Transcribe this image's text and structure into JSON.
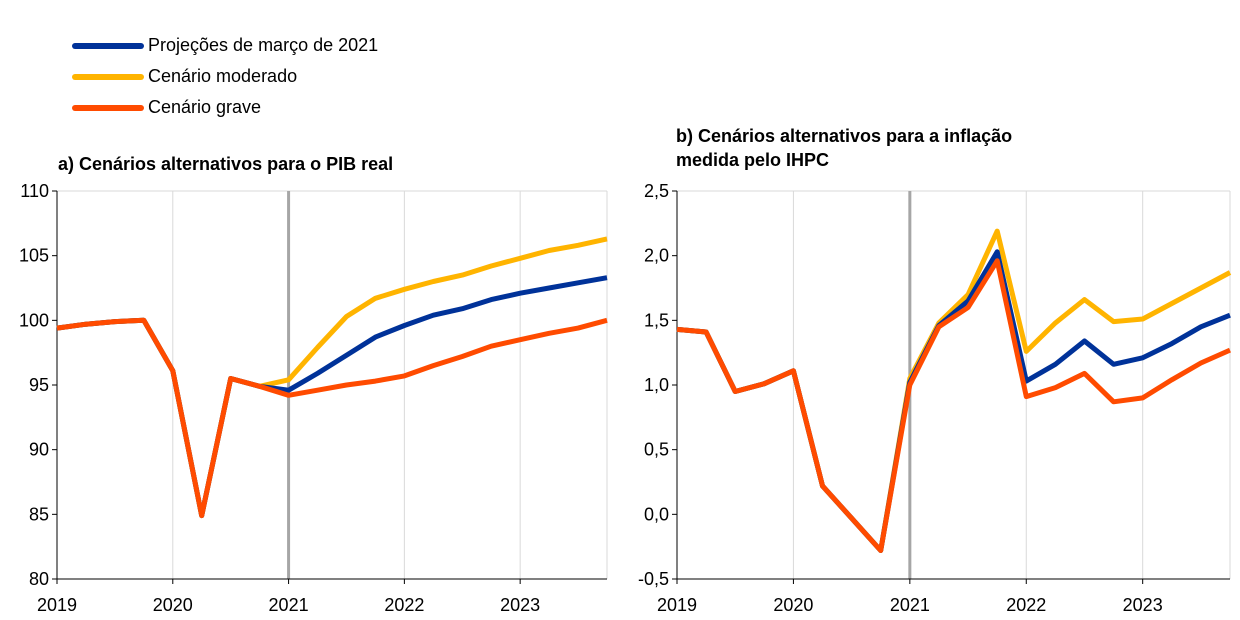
{
  "legend": [
    {
      "label": "Projeções de março de 2021",
      "color": "#003299"
    },
    {
      "label": "Cenário moderado",
      "color": "#FFB400"
    },
    {
      "label": "Cenário grave",
      "color": "#FF4B00"
    }
  ],
  "colors": {
    "grid": "#d9d9d9",
    "marker": "#a6a6a6",
    "axis": "#000000"
  },
  "chart_data": [
    {
      "type": "line",
      "title": "a) Cenários alternativos para o PIB real",
      "xlabel": "",
      "ylabel": "",
      "x_tick_labels": [
        "2019",
        "2020",
        "2021",
        "2022",
        "2023"
      ],
      "x_range": [
        2019,
        2023.75
      ],
      "ylim": [
        80,
        110
      ],
      "y_ticks": [
        80,
        85,
        90,
        95,
        100,
        105,
        110
      ],
      "y_tick_labels": [
        "80",
        "85",
        "90",
        "95",
        "100",
        "105",
        "110"
      ],
      "grid": "vertical",
      "vertical_marker": 2021,
      "series": [
        {
          "name": "Cenário moderado",
          "color": "#FFB400",
          "x": [
            2019,
            2019.25,
            2019.5,
            2019.75,
            2020,
            2020.25,
            2020.5,
            2020.75,
            2021,
            2021.25,
            2021.5,
            2021.75,
            2022,
            2022.25,
            2022.5,
            2022.75,
            2023,
            2023.25,
            2023.5,
            2023.75
          ],
          "y": [
            99.4,
            99.7,
            99.9,
            100.0,
            96.1,
            84.9,
            95.5,
            94.9,
            95.4,
            97.9,
            100.3,
            101.7,
            102.4,
            103.0,
            103.5,
            104.2,
            104.8,
            105.4,
            105.8,
            106.3
          ]
        },
        {
          "name": "Projeções de março de 2021",
          "color": "#003299",
          "x": [
            2019,
            2019.25,
            2019.5,
            2019.75,
            2020,
            2020.25,
            2020.5,
            2020.75,
            2021,
            2021.25,
            2021.5,
            2021.75,
            2022,
            2022.25,
            2022.5,
            2022.75,
            2023,
            2023.25,
            2023.5,
            2023.75
          ],
          "y": [
            99.4,
            99.7,
            99.9,
            100.0,
            96.1,
            84.9,
            95.5,
            94.9,
            94.6,
            95.9,
            97.3,
            98.7,
            99.6,
            100.4,
            100.9,
            101.6,
            102.1,
            102.5,
            102.9,
            103.3
          ]
        },
        {
          "name": "Cenário grave",
          "color": "#FF4B00",
          "x": [
            2019,
            2019.25,
            2019.5,
            2019.75,
            2020,
            2020.25,
            2020.5,
            2020.75,
            2021,
            2021.25,
            2021.5,
            2021.75,
            2022,
            2022.25,
            2022.5,
            2022.75,
            2023,
            2023.25,
            2023.5,
            2023.75
          ],
          "y": [
            99.4,
            99.7,
            99.9,
            100.0,
            96.1,
            84.9,
            95.5,
            94.9,
            94.2,
            94.6,
            95.0,
            95.3,
            95.7,
            96.5,
            97.2,
            98.0,
            98.5,
            99.0,
            99.4,
            100.0
          ]
        }
      ]
    },
    {
      "type": "line",
      "title": "b) Cenários alternativos para a inflação medida pelo IHPC",
      "title_lines": [
        "b) Cenários alternativos para a inflação",
        "medida pelo IHPC"
      ],
      "xlabel": "",
      "ylabel": "",
      "x_tick_labels": [
        "2019",
        "2020",
        "2021",
        "2022",
        "2023"
      ],
      "x_range": [
        2019,
        2023.75
      ],
      "ylim": [
        -0.5,
        2.5
      ],
      "y_ticks": [
        -0.5,
        0.0,
        0.5,
        1.0,
        1.5,
        2.0,
        2.5
      ],
      "y_tick_labels": [
        "-0,5",
        "0,0",
        "0,5",
        "1,0",
        "1,5",
        "2,0",
        "2,5"
      ],
      "grid": "vertical",
      "vertical_marker": 2021,
      "series": [
        {
          "name": "Cenário moderado",
          "color": "#FFB400",
          "x": [
            2019,
            2019.25,
            2019.5,
            2019.75,
            2020,
            2020.25,
            2020.5,
            2020.75,
            2021,
            2021.25,
            2021.5,
            2021.75,
            2022,
            2022.25,
            2022.5,
            2022.75,
            2023,
            2023.25,
            2023.5,
            2023.75
          ],
          "y": [
            1.43,
            1.41,
            0.95,
            1.01,
            1.11,
            0.22,
            -0.03,
            -0.28,
            1.05,
            1.48,
            1.7,
            2.19,
            1.26,
            1.48,
            1.66,
            1.49,
            1.51,
            1.63,
            1.75,
            1.87
          ]
        },
        {
          "name": "Projeções de março de 2021",
          "color": "#003299",
          "x": [
            2019,
            2019.25,
            2019.5,
            2019.75,
            2020,
            2020.25,
            2020.5,
            2020.75,
            2021,
            2021.25,
            2021.5,
            2021.75,
            2022,
            2022.25,
            2022.5,
            2022.75,
            2023,
            2023.25,
            2023.5,
            2023.75
          ],
          "y": [
            1.43,
            1.41,
            0.95,
            1.01,
            1.11,
            0.22,
            -0.03,
            -0.28,
            1.02,
            1.46,
            1.65,
            2.03,
            1.03,
            1.16,
            1.34,
            1.16,
            1.21,
            1.32,
            1.45,
            1.54
          ]
        },
        {
          "name": "Cenário grave",
          "color": "#FF4B00",
          "x": [
            2019,
            2019.25,
            2019.5,
            2019.75,
            2020,
            2020.25,
            2020.5,
            2020.75,
            2021,
            2021.25,
            2021.5,
            2021.75,
            2022,
            2022.25,
            2022.5,
            2022.75,
            2023,
            2023.25,
            2023.5,
            2023.75
          ],
          "y": [
            1.43,
            1.41,
            0.95,
            1.01,
            1.11,
            0.22,
            -0.03,
            -0.28,
            1.0,
            1.45,
            1.6,
            1.96,
            0.91,
            0.98,
            1.09,
            0.87,
            0.9,
            1.04,
            1.17,
            1.27
          ]
        }
      ]
    }
  ]
}
